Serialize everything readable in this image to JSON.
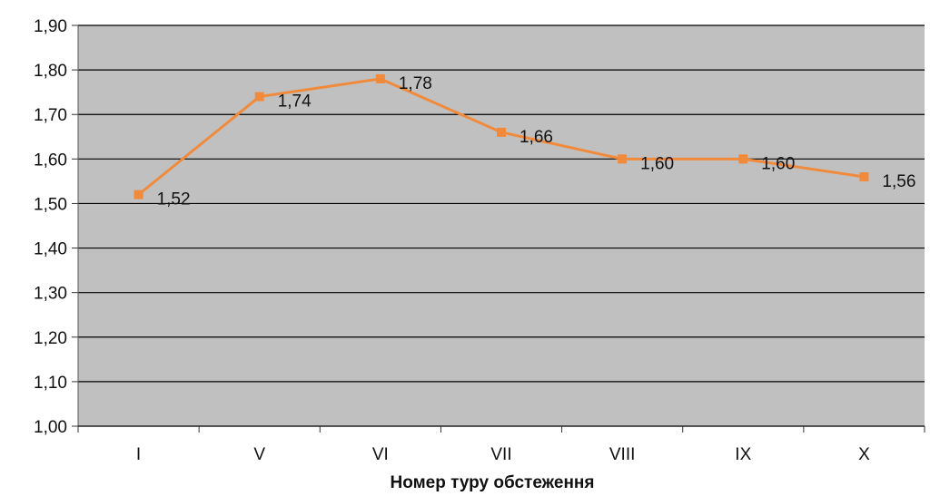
{
  "chart_data": {
    "type": "line",
    "title": "",
    "xlabel": "Номер туру обстеження",
    "ylabel": "",
    "categories": [
      "I",
      "V",
      "VI",
      "VII",
      "VIII",
      "IX",
      "X"
    ],
    "series": [
      {
        "values": [
          1.52,
          1.74,
          1.78,
          1.66,
          1.6,
          1.6,
          1.56
        ],
        "labels": [
          "1,52",
          "1,74",
          "1,78",
          "1,66",
          "1,60",
          "1,60",
          "1,56"
        ],
        "color": "#f28a3c"
      }
    ],
    "ylim": [
      1.0,
      1.9
    ],
    "yticks": [
      1.0,
      1.1,
      1.2,
      1.3,
      1.4,
      1.5,
      1.6,
      1.7,
      1.8,
      1.9
    ],
    "ytick_labels": [
      "1,00",
      "1,10",
      "1,20",
      "1,30",
      "1,40",
      "1,50",
      "1,60",
      "1,70",
      "1,80",
      "1,90"
    ],
    "grid": true,
    "legend": "none",
    "plot_background": "#c0c0c0",
    "gridline_color": "#000000"
  }
}
